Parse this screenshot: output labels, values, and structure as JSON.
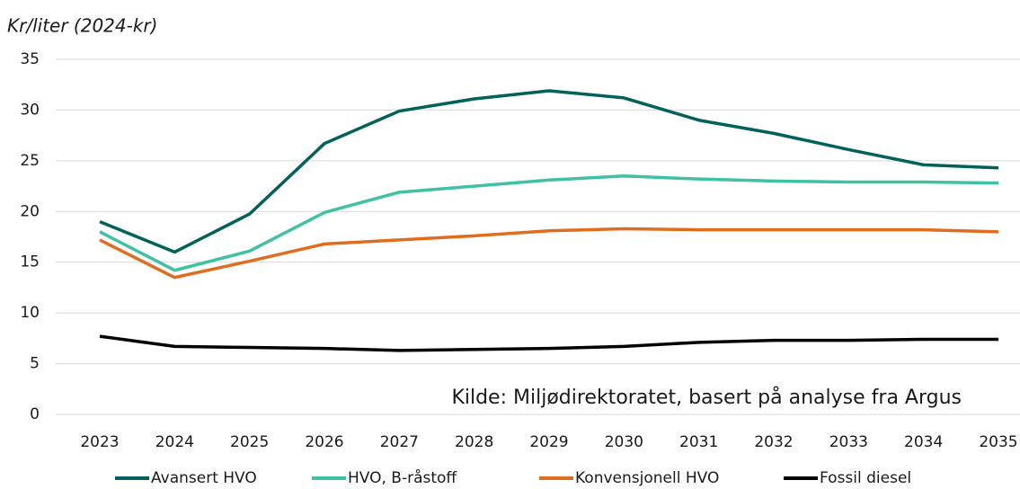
{
  "chart_data": {
    "type": "line",
    "y_label": "Kr/liter (2024-kr)",
    "annotation": "Kilde: Miljødirektoratet, basert på analyse fra Argus",
    "categories": [
      "2023",
      "2024",
      "2025",
      "2026",
      "2027",
      "2028",
      "2029",
      "2030",
      "2031",
      "2032",
      "2033",
      "2034",
      "2035"
    ],
    "series": [
      {
        "name": "Avansert HVO",
        "color": "#00625a",
        "values": [
          19.0,
          16.0,
          19.75,
          26.7,
          29.9,
          31.1,
          31.9,
          31.2,
          29.0,
          27.7,
          26.1,
          24.6,
          24.3
        ]
      },
      {
        "name": "HVO, B-råstoff",
        "color": "#3fc1a4",
        "values": [
          18.0,
          14.2,
          16.1,
          19.9,
          21.9,
          22.5,
          23.1,
          23.5,
          23.2,
          23.0,
          22.9,
          22.9,
          22.8
        ]
      },
      {
        "name": "Konvensjonell HVO",
        "color": "#e06c1e",
        "values": [
          17.2,
          13.5,
          15.1,
          16.8,
          17.2,
          17.6,
          18.1,
          18.3,
          18.2,
          18.2,
          18.2,
          18.2,
          18.0
        ]
      },
      {
        "name": "Fossil diesel",
        "color": "#000000",
        "values": [
          7.7,
          6.7,
          6.6,
          6.5,
          6.3,
          6.4,
          6.5,
          6.7,
          7.1,
          7.3,
          7.3,
          7.4,
          7.4
        ]
      }
    ],
    "ylim": [
      0,
      35
    ],
    "yticks": [
      0,
      5,
      10,
      15,
      20,
      25,
      30,
      35
    ],
    "grid": true
  }
}
